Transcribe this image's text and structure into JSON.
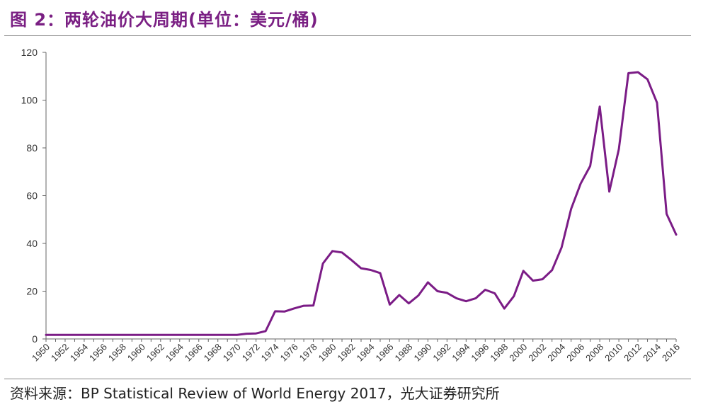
{
  "header": {
    "title": "图 2：两轮油价大周期(单位：美元/桶)"
  },
  "footer": {
    "source": "资料来源：BP Statistical Review of World Energy 2017，光大证券研究所"
  },
  "colors": {
    "line": "#7b1c86",
    "title": "#7a1f83",
    "axis": "#666666"
  },
  "chart_data": {
    "type": "line",
    "title": "图 2：两轮油价大周期(单位：美元/桶)",
    "xlabel": "",
    "ylabel": "",
    "ylim": [
      0,
      120
    ],
    "yticks": [
      0,
      20,
      40,
      60,
      80,
      100,
      120
    ],
    "xlim": [
      1950,
      2016
    ],
    "xtick_labels": [
      "1950",
      "1952",
      "1954",
      "1956",
      "1958",
      "1960",
      "1962",
      "1964",
      "1966",
      "1968",
      "1970",
      "1972",
      "1974",
      "1976",
      "1978",
      "1980",
      "1982",
      "1984",
      "1986",
      "1988",
      "1990",
      "1992",
      "1994",
      "1996",
      "1998",
      "2000",
      "2002",
      "2004",
      "2006",
      "2008",
      "2010",
      "2012",
      "2014",
      "2016"
    ],
    "grid": false,
    "legend": "none",
    "series": [
      {
        "name": "",
        "x": [
          1950,
          1951,
          1952,
          1953,
          1954,
          1955,
          1956,
          1957,
          1958,
          1959,
          1960,
          1961,
          1962,
          1963,
          1964,
          1965,
          1966,
          1967,
          1968,
          1969,
          1970,
          1971,
          1972,
          1973,
          1974,
          1975,
          1976,
          1977,
          1978,
          1979,
          1980,
          1981,
          1982,
          1983,
          1984,
          1985,
          1986,
          1987,
          1988,
          1989,
          1990,
          1991,
          1992,
          1993,
          1994,
          1995,
          1996,
          1997,
          1998,
          1999,
          2000,
          2001,
          2002,
          2003,
          2004,
          2005,
          2006,
          2007,
          2008,
          2009,
          2010,
          2011,
          2012,
          2013,
          2014,
          2015,
          2016
        ],
        "values": [
          1.7,
          1.7,
          1.7,
          1.7,
          1.7,
          1.7,
          1.7,
          1.7,
          1.7,
          1.7,
          1.7,
          1.7,
          1.7,
          1.7,
          1.7,
          1.7,
          1.7,
          1.7,
          1.7,
          1.7,
          1.7,
          2.2,
          2.3,
          3.3,
          11.6,
          11.5,
          12.8,
          13.9,
          14.0,
          31.6,
          36.8,
          36.2,
          33.0,
          29.6,
          28.9,
          27.6,
          14.4,
          18.4,
          14.9,
          18.2,
          23.7,
          20.0,
          19.3,
          17.0,
          15.8,
          17.0,
          20.6,
          19.1,
          12.7,
          17.9,
          28.5,
          24.4,
          25.0,
          28.8,
          38.3,
          54.5,
          65.1,
          72.4,
          97.3,
          61.7,
          79.5,
          111.3,
          111.7,
          108.7,
          98.9,
          52.4,
          43.7
        ]
      }
    ]
  }
}
